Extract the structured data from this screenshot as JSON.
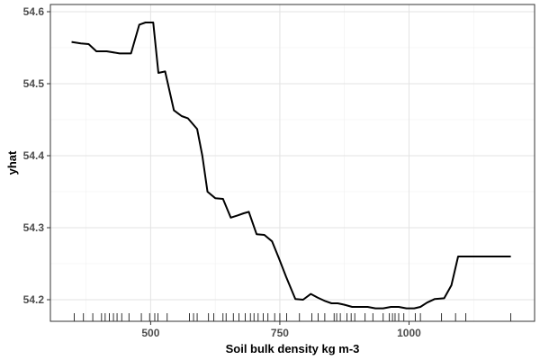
{
  "chart_data": {
    "type": "line",
    "title": "",
    "xlabel": "Soil bulk density kg m-3",
    "ylabel": "yhat",
    "xlim": [
      306,
      1243
    ],
    "ylim": [
      54.17,
      54.61
    ],
    "x_ticks": [
      500,
      750,
      1000
    ],
    "x_tick_labels": [
      "500",
      "750",
      "1000"
    ],
    "y_ticks": [
      54.2,
      54.3,
      54.4,
      54.5,
      54.6
    ],
    "y_tick_labels": [
      "54.2",
      "54.3",
      "54.4",
      "54.5",
      "54.6"
    ],
    "grid": true,
    "legend": "none",
    "line_color": "#000000",
    "series": [
      {
        "x": [
          347,
          365,
          380,
          395,
          415,
          440,
          462,
          478,
          490,
          505,
          515,
          528,
          545,
          560,
          572,
          590,
          600,
          610,
          625,
          640,
          655,
          668,
          680,
          690,
          705,
          720,
          735,
          748,
          762,
          780,
          795,
          810,
          823,
          838,
          850,
          862,
          875,
          890,
          905,
          920,
          935,
          950,
          965,
          980,
          995,
          1010,
          1022,
          1035,
          1050,
          1068,
          1082,
          1095,
          1110,
          1130,
          1150,
          1170,
          1185,
          1197
        ],
        "y": [
          54.558,
          54.556,
          54.555,
          54.545,
          54.545,
          54.542,
          54.542,
          54.582,
          54.585,
          54.585,
          54.515,
          54.517,
          54.463,
          54.455,
          54.452,
          54.437,
          54.4,
          54.35,
          54.341,
          54.34,
          54.314,
          54.317,
          54.32,
          54.322,
          54.291,
          54.29,
          54.281,
          54.258,
          54.232,
          54.201,
          54.2,
          54.208,
          54.203,
          54.198,
          54.195,
          54.195,
          54.193,
          54.19,
          54.19,
          54.19,
          54.188,
          54.188,
          54.19,
          54.19,
          54.188,
          54.188,
          54.19,
          54.196,
          54.201,
          54.202,
          54.22,
          54.26,
          54.26,
          54.26,
          54.26,
          54.26,
          54.26,
          54.26
        ]
      }
    ],
    "rug_x": [
      352,
      370,
      388,
      405,
      412,
      420,
      428,
      435,
      444,
      458,
      482,
      498,
      508,
      514,
      532,
      575,
      583,
      590,
      612,
      622,
      640,
      646,
      660,
      671,
      683,
      693,
      700,
      708,
      718,
      727,
      740,
      750,
      763,
      788,
      812,
      824,
      837,
      855,
      860,
      867,
      880,
      888,
      895,
      915,
      930,
      950,
      962,
      968,
      973,
      980,
      990,
      1012,
      1022,
      1063,
      1090,
      1110,
      1197
    ]
  }
}
